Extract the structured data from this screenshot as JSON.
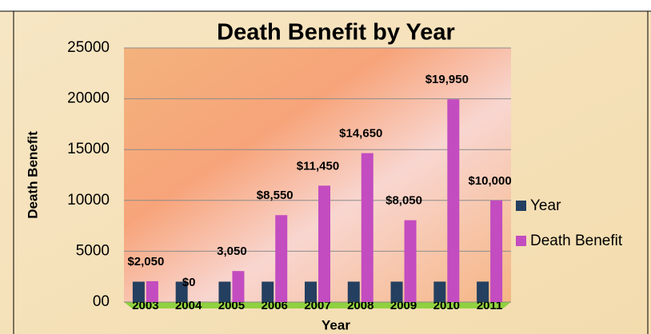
{
  "chart_data": {
    "type": "bar",
    "title": "Death Benefit by Year",
    "x_label": "Year",
    "y_label": "Death Benefit",
    "categories": [
      "2003",
      "2004",
      "2005",
      "2006",
      "2007",
      "2008",
      "2009",
      "2010",
      "2011"
    ],
    "series": [
      {
        "name": "Year",
        "color": "#243f60",
        "values": [
          2003,
          2004,
          2005,
          2006,
          2007,
          2008,
          2009,
          2010,
          2011
        ]
      },
      {
        "name": "Death Benefit",
        "color": "#c34cc0",
        "values": [
          2050,
          0,
          3050,
          8550,
          11450,
          14650,
          8050,
          19950,
          10000
        ],
        "value_labels": [
          "$2,050",
          "$0",
          "3,050",
          "$8,550",
          "$11,450",
          "$14,650",
          "$8,050",
          "$19,950",
          "$10,000"
        ]
      }
    ],
    "ylim": [
      0,
      25000
    ],
    "yticks": [
      {
        "value": 0,
        "label": "00"
      },
      5000,
      10000,
      15000,
      20000,
      25000
    ],
    "grid": true,
    "legend": "right"
  }
}
